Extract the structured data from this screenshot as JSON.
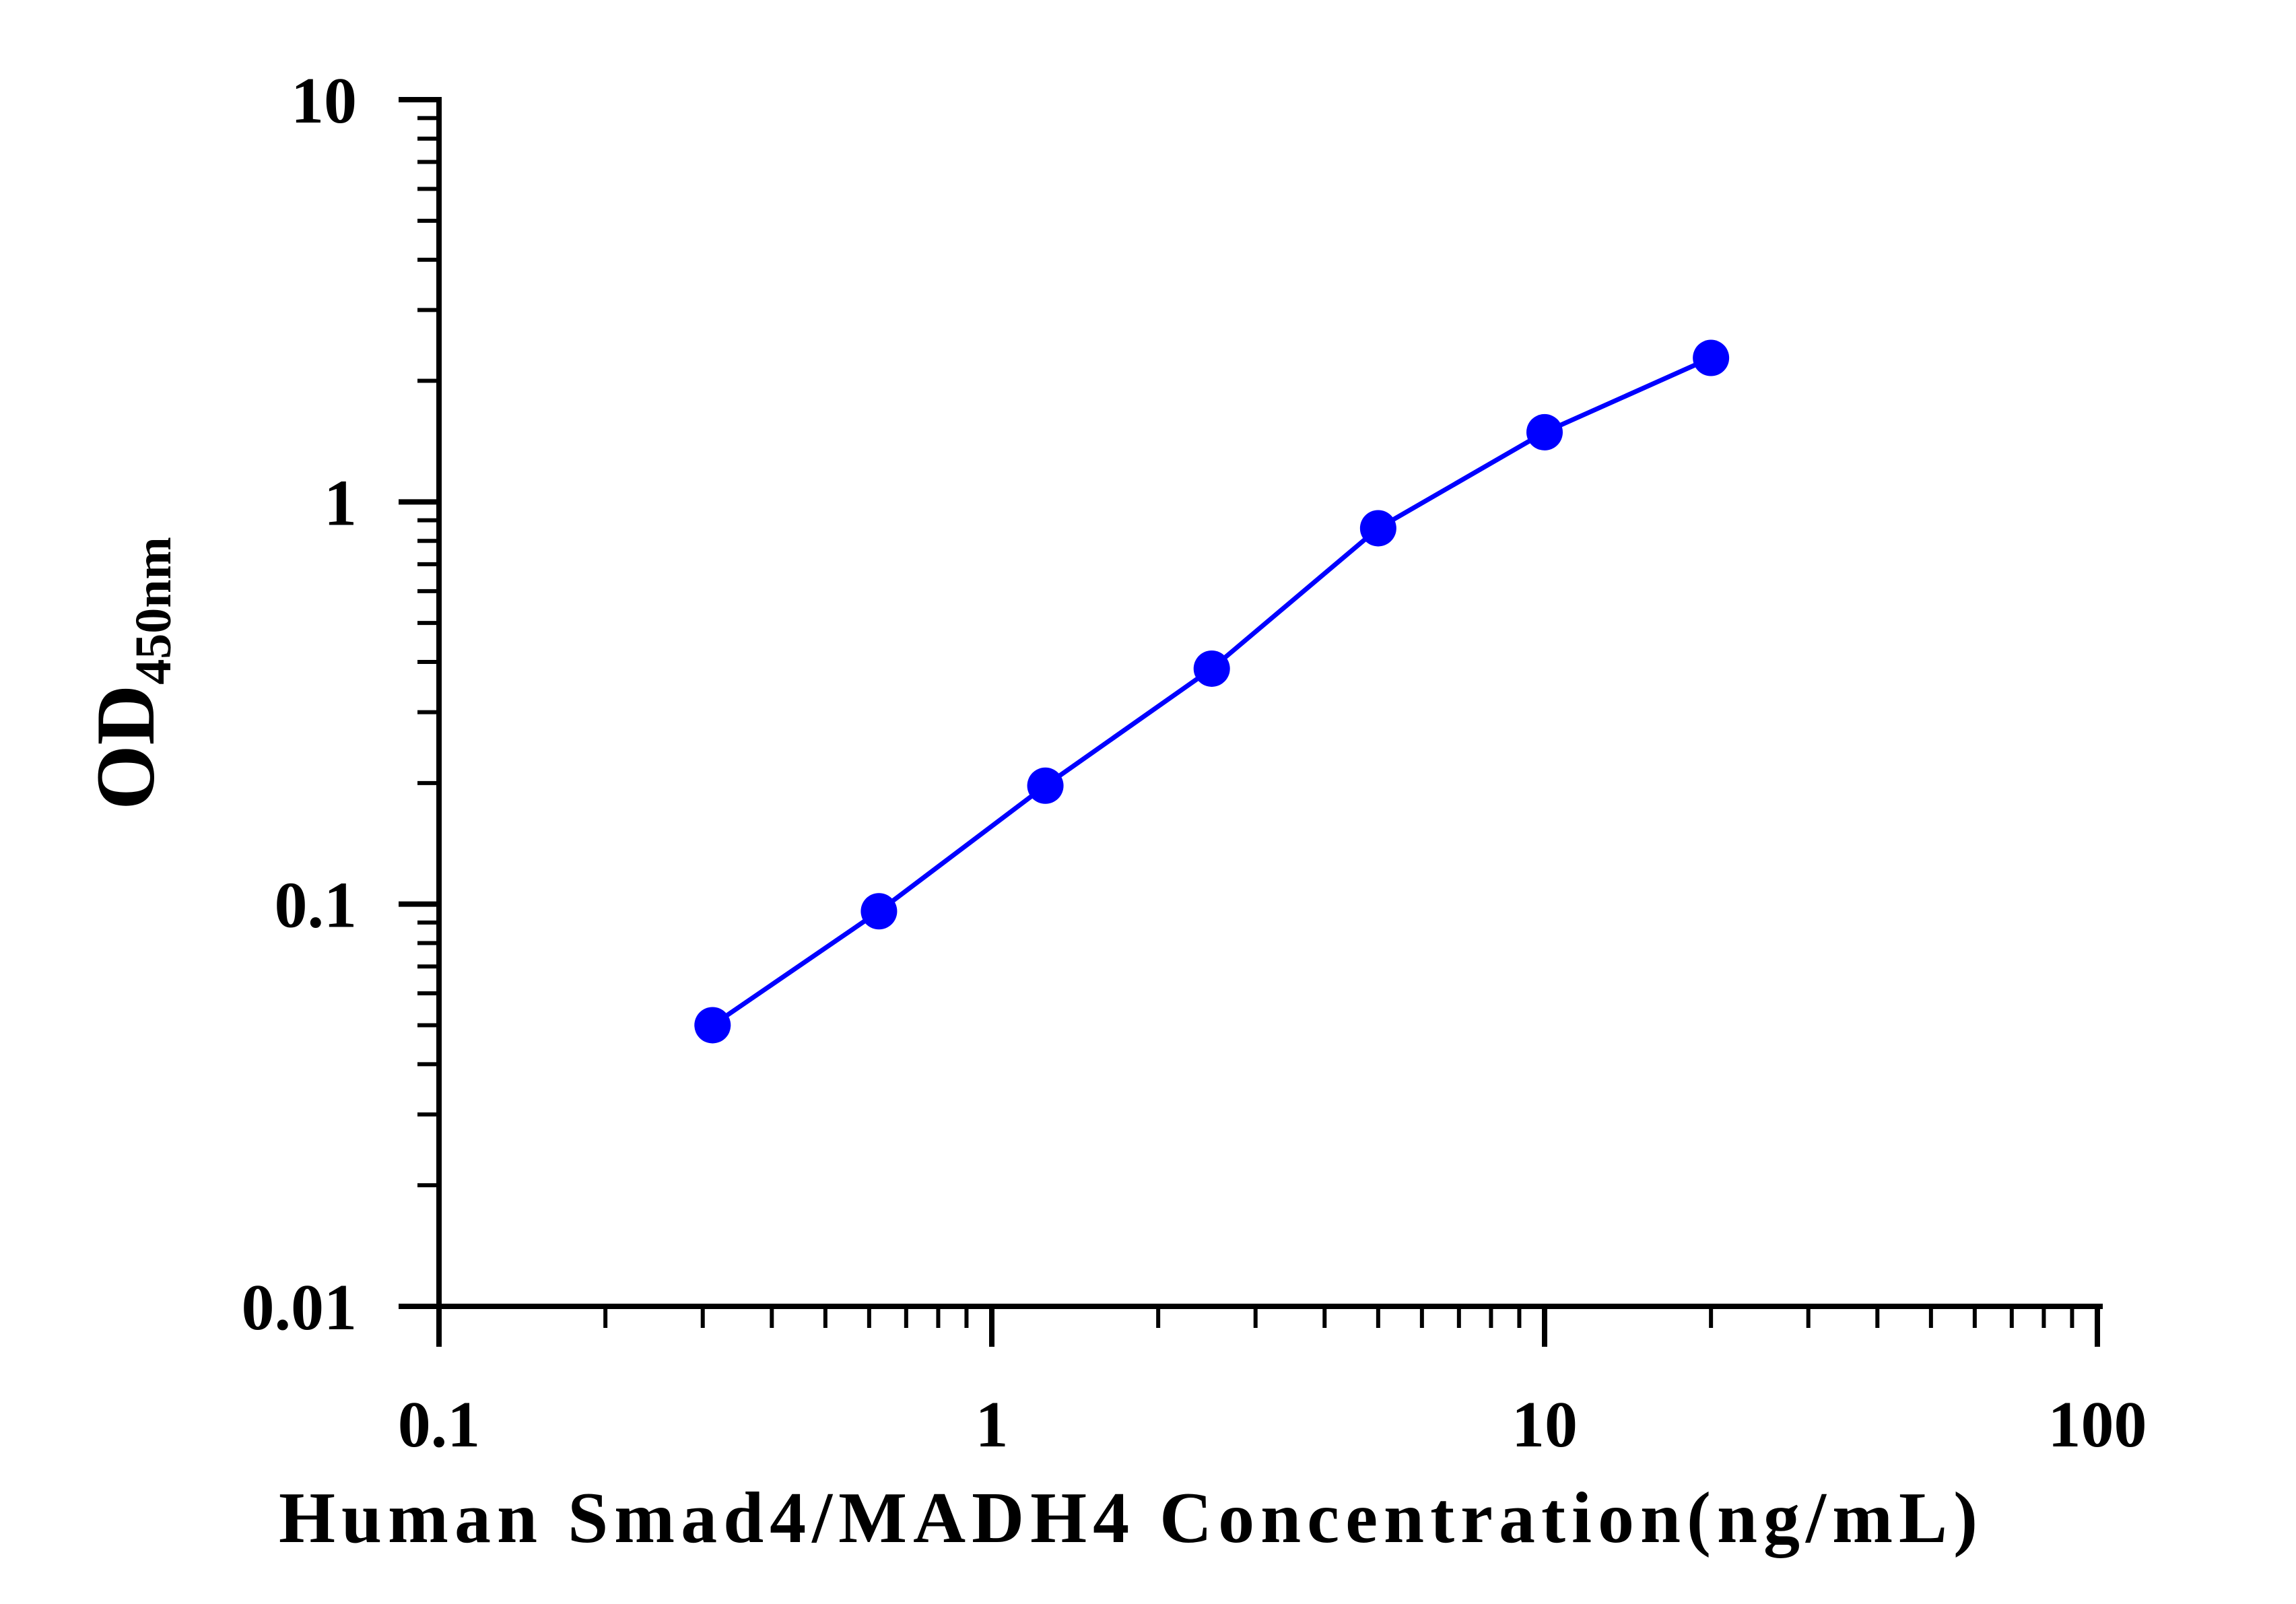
{
  "chart_data": {
    "type": "line",
    "xlabel": "Human Smad4/MADH4 Concentration(ng/mL)",
    "ylabel_main": "OD",
    "ylabel_sub": "450nm",
    "x_scale": "log",
    "y_scale": "log",
    "xlim": [
      0.1,
      100
    ],
    "ylim": [
      0.01,
      10
    ],
    "x_tick_labels": [
      "0.1",
      "1",
      "10",
      "100"
    ],
    "y_tick_labels": [
      "0.01",
      "0.1",
      "1",
      "10"
    ],
    "grid": false,
    "series": [
      {
        "color": "#0000ff",
        "x": [
          0.3125,
          0.625,
          1.25,
          2.5,
          5,
          10,
          20
        ],
        "y": [
          0.05,
          0.096,
          0.197,
          0.385,
          0.86,
          1.49,
          2.28
        ]
      }
    ]
  }
}
